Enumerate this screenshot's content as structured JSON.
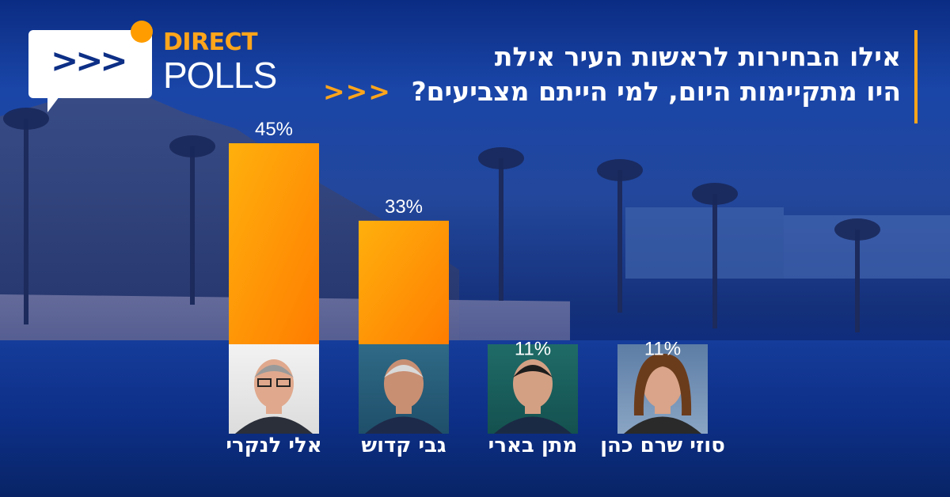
{
  "logo": {
    "top": "DIRECT",
    "bottom": "POLLS",
    "arrows": ">>>"
  },
  "question": {
    "line1": "אילו הבחירות לראשות העיר אילת",
    "line2": "היו מתקיימות היום, למי הייתם מצביעים?",
    "arrows": "<<<"
  },
  "colors": {
    "accent": "#ffa51b",
    "bar_top": "#ffad0d",
    "bar_bottom": "#ff7f00",
    "background": "#0c2f86"
  },
  "chart_data": {
    "type": "bar",
    "categories": [
      "אלי לנקרי",
      "גבי קדוש",
      "מתן בארי",
      "סוזי שרם כהן"
    ],
    "values": [
      45,
      33,
      11,
      11
    ],
    "value_labels": [
      "45%",
      "33%",
      "11%",
      "11%"
    ],
    "unit": "%",
    "ylim": [
      0,
      45
    ],
    "title": "",
    "xlabel": "",
    "ylabel": "",
    "grid": false,
    "legend": "none"
  }
}
